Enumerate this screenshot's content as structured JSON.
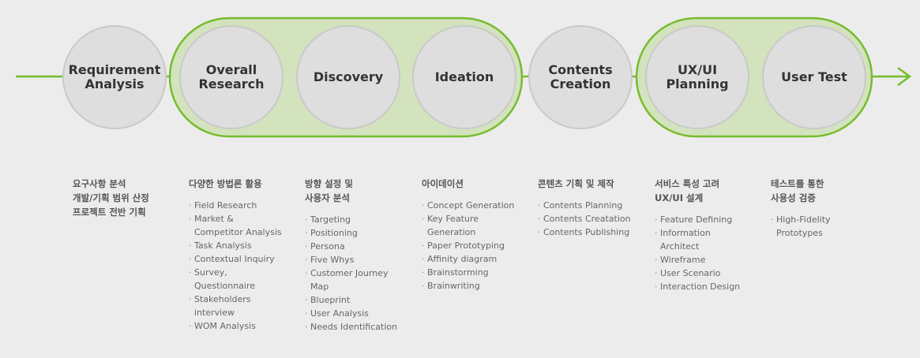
{
  "colors": {
    "accent_green": "#76bc2c",
    "group_fill": "#d3e3bd",
    "circle_fill": "#dedede",
    "circle_stroke": "#c9c9c9",
    "background": "#ececec"
  },
  "stages": [
    {
      "label": "Requirement\nAnalysis",
      "grouped": false
    },
    {
      "label": "Overall\nResearch",
      "grouped": true
    },
    {
      "label": "Discovery",
      "grouped": true
    },
    {
      "label": "Ideation",
      "grouped": true
    },
    {
      "label": "Contents\nCreation",
      "grouped": false
    },
    {
      "label": "UX/UI\nPlanning",
      "grouped": true
    },
    {
      "label": "User Test",
      "grouped": true
    }
  ],
  "columns": [
    {
      "title": "요구사항 분석\n개발/기획 범위 산정\n프로젝트 전반 기획",
      "items": []
    },
    {
      "title": "다양한 방법론 활용",
      "items": [
        "Field Research",
        "Market &\nCompetitor Analysis",
        "Task Analysis",
        "Contextual Inquiry",
        "Survey,\nQuestionnaire",
        "Stakeholders\ninterview",
        "WOM Analysis"
      ]
    },
    {
      "title": "방향 설정 및\n사용자 분석",
      "items": [
        "Targeting",
        "Positioning",
        "Persona",
        "Five Whys",
        "Customer Journey\nMap",
        "Blueprint",
        "User Analysis",
        "Needs Identification"
      ]
    },
    {
      "title": "아이데이션",
      "items": [
        "Concept Generation",
        "Key Feature\nGeneration",
        "Paper Prototyping",
        "Affinity diagram",
        "Brainstorming",
        "Brainwriting"
      ]
    },
    {
      "title": "콘텐츠 기획 및 제작",
      "items": [
        "Contents Planning",
        "Contents Creatation",
        "Contents Publishing"
      ]
    },
    {
      "title": "서비스 특성 고려\nUX/UI 설계",
      "items": [
        "Feature Defining",
        "Information\nArchitect",
        "Wireframe",
        "User Scenario",
        "Interaction Design"
      ]
    },
    {
      "title": "테스트를 통한\n사용성 검증",
      "items": [
        "High-Fidelity\nPrototypes"
      ]
    }
  ]
}
